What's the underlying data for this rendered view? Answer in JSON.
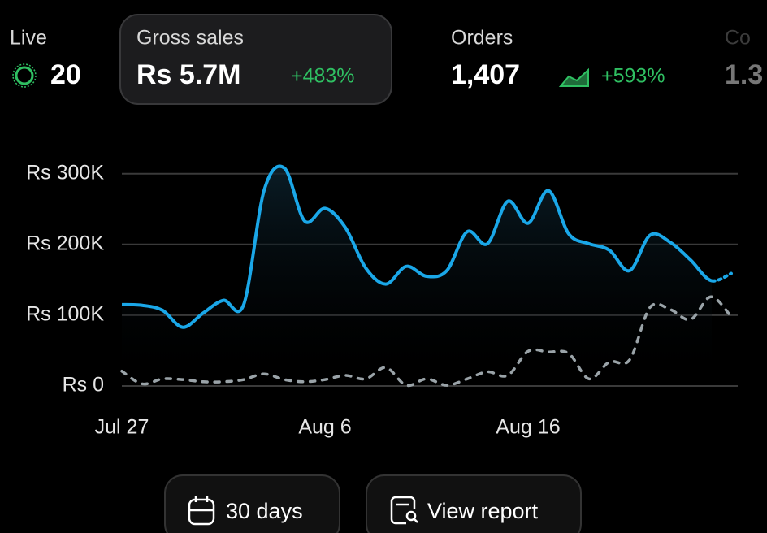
{
  "metrics": [
    {
      "label": "Live",
      "value": "20"
    },
    {
      "label": "Gross sales",
      "value": "Rs 5.7M",
      "change": "+483%"
    },
    {
      "label": "Orders",
      "value": "1,407",
      "change": "+593%"
    },
    {
      "label": "Co",
      "value": "1.3"
    }
  ],
  "chart_data": {
    "type": "line",
    "categories": [
      "Jul 27",
      null,
      null,
      null,
      null,
      null,
      null,
      null,
      null,
      null,
      "Aug 6",
      null,
      null,
      null,
      null,
      null,
      null,
      null,
      null,
      null,
      "Aug 16",
      null,
      null,
      null,
      null,
      null,
      null,
      null,
      null,
      null,
      null
    ],
    "series": [
      {
        "color": "#1aa7e8",
        "values": [
          115000,
          114000,
          107000,
          83000,
          103000,
          121000,
          115000,
          276000,
          308000,
          233000,
          251000,
          224000,
          167000,
          144000,
          169000,
          155000,
          163000,
          218000,
          201000,
          261000,
          230000,
          276000,
          215000,
          201000,
          192000,
          163000,
          213000,
          203000,
          178000,
          149000,
          159000
        ]
      },
      {
        "color": "#9aa3a8",
        "values": [
          21000,
          3000,
          10000,
          9000,
          6000,
          6000,
          9000,
          17000,
          9000,
          6000,
          9000,
          15000,
          10000,
          26000,
          1000,
          10000,
          1000,
          10000,
          20000,
          15000,
          49000,
          48000,
          46000,
          10000,
          34000,
          37000,
          111000,
          108000,
          94000,
          126000,
          98000
        ]
      }
    ],
    "ylim": [
      0,
      310000
    ],
    "yticks": [
      {
        "value": 0,
        "label": "Rs 0"
      },
      {
        "value": 100000,
        "label": "Rs 100K"
      },
      {
        "value": 200000,
        "label": "Rs 200K"
      },
      {
        "value": 300000,
        "label": "Rs 300K"
      }
    ],
    "grid": true
  },
  "buttons": [
    "30 days",
    "View report"
  ]
}
